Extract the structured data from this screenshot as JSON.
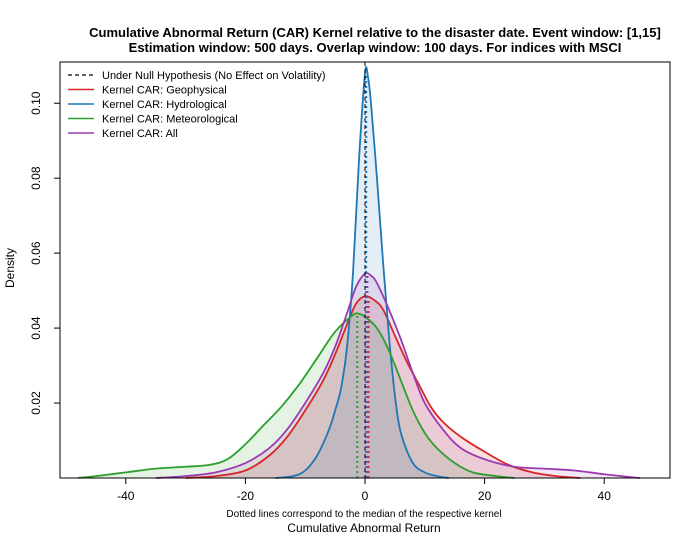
{
  "chart_data": {
    "type": "area",
    "title": "Cumulative Abnormal Return (CAR) Kernel relative to the disaster date. Event window: [1,15]",
    "subtitle": "Estimation window: 500 days. Overlap window: 100 days. For indices with MSCI",
    "xlabel": "Cumulative Abnormal Return",
    "ylabel": "Density",
    "note": "Dotted lines correspond to the median of the respective kernel",
    "xlim": [
      -51,
      51
    ],
    "ylim": [
      0,
      0.111
    ],
    "x_ticks": [
      -40,
      -20,
      0,
      20,
      40
    ],
    "x_tick_labels": [
      "-40",
      "-20",
      "0",
      "20",
      "40"
    ],
    "y_ticks": [
      0.02,
      0.04,
      0.06,
      0.08,
      0.1
    ],
    "y_tick_labels": [
      "0.02",
      "0.04",
      "0.06",
      "0.08",
      "0.10"
    ],
    "grid": false,
    "legend_position": "top-left",
    "null_hypothesis": {
      "label": "Under Null Hypothesis (No Effect on Volatility)",
      "x": 0,
      "color": "#000000"
    },
    "series": [
      {
        "name": "Kernel CAR: Geophysical",
        "color": "#d62728",
        "fill": "rgba(214,39,40,0.15)",
        "median": 0.6,
        "points": [
          [
            -30,
            0
          ],
          [
            -25,
            0.0005
          ],
          [
            -20,
            0.002
          ],
          [
            -16,
            0.006
          ],
          [
            -13,
            0.011
          ],
          [
            -10,
            0.018
          ],
          [
            -7,
            0.026
          ],
          [
            -5,
            0.033
          ],
          [
            -3,
            0.041
          ],
          [
            -1.5,
            0.0465
          ],
          [
            0,
            0.0485
          ],
          [
            1.5,
            0.0475
          ],
          [
            3,
            0.045
          ],
          [
            5,
            0.038
          ],
          [
            7,
            0.031
          ],
          [
            9,
            0.025
          ],
          [
            11,
            0.019
          ],
          [
            13,
            0.015
          ],
          [
            16,
            0.011
          ],
          [
            20,
            0.007
          ],
          [
            24,
            0.0035
          ],
          [
            28,
            0.0015
          ],
          [
            32,
            0.0005
          ],
          [
            36,
            0
          ]
        ]
      },
      {
        "name": "Kernel CAR: Hydrological",
        "color": "#1f77b4",
        "fill": "rgba(31,119,180,0.12)",
        "median": 0.2,
        "points": [
          [
            -15,
            0
          ],
          [
            -12,
            0.0005
          ],
          [
            -10,
            0.002
          ],
          [
            -8,
            0.006
          ],
          [
            -6,
            0.013
          ],
          [
            -5,
            0.018
          ],
          [
            -4,
            0.024
          ],
          [
            -3,
            0.035
          ],
          [
            -2,
            0.055
          ],
          [
            -1,
            0.085
          ],
          [
            0,
            0.108
          ],
          [
            0.5,
            0.107
          ],
          [
            1,
            0.1
          ],
          [
            2,
            0.08
          ],
          [
            3,
            0.058
          ],
          [
            4,
            0.038
          ],
          [
            5,
            0.022
          ],
          [
            6,
            0.012
          ],
          [
            8,
            0.004
          ],
          [
            10,
            0.0015
          ],
          [
            12,
            0.0005
          ],
          [
            14,
            0
          ]
        ]
      },
      {
        "name": "Kernel CAR: Meteorological",
        "color": "#2ca02c",
        "fill": "rgba(44,160,44,0.12)",
        "median": -1.3,
        "points": [
          [
            -48,
            0
          ],
          [
            -45,
            0.0005
          ],
          [
            -40,
            0.0015
          ],
          [
            -35,
            0.0025
          ],
          [
            -30,
            0.003
          ],
          [
            -26,
            0.0035
          ],
          [
            -23,
            0.005
          ],
          [
            -20,
            0.009
          ],
          [
            -17,
            0.014
          ],
          [
            -14,
            0.019
          ],
          [
            -11,
            0.025
          ],
          [
            -8,
            0.032
          ],
          [
            -5,
            0.039
          ],
          [
            -2,
            0.0435
          ],
          [
            -1,
            0.0438
          ],
          [
            0,
            0.043
          ],
          [
            2,
            0.04
          ],
          [
            4,
            0.034
          ],
          [
            6,
            0.026
          ],
          [
            8,
            0.018
          ],
          [
            10,
            0.012
          ],
          [
            12,
            0.008
          ],
          [
            15,
            0.004
          ],
          [
            18,
            0.0015
          ],
          [
            22,
            0.0005
          ],
          [
            25,
            0
          ]
        ]
      },
      {
        "name": "Kernel CAR: All",
        "color": "#9b3bb0",
        "fill": "rgba(155,59,176,0.12)",
        "median": 0.4,
        "points": [
          [
            -35,
            0
          ],
          [
            -30,
            0.0005
          ],
          [
            -25,
            0.0015
          ],
          [
            -20,
            0.004
          ],
          [
            -16,
            0.008
          ],
          [
            -13,
            0.013
          ],
          [
            -10,
            0.02
          ],
          [
            -7,
            0.028
          ],
          [
            -5,
            0.035
          ],
          [
            -3,
            0.044
          ],
          [
            -1.5,
            0.051
          ],
          [
            0,
            0.0545
          ],
          [
            1,
            0.054
          ],
          [
            2,
            0.052
          ],
          [
            4,
            0.045
          ],
          [
            6,
            0.037
          ],
          [
            8,
            0.028
          ],
          [
            10,
            0.02
          ],
          [
            13,
            0.013
          ],
          [
            16,
            0.008
          ],
          [
            20,
            0.005
          ],
          [
            25,
            0.003
          ],
          [
            30,
            0.0025
          ],
          [
            35,
            0.002
          ],
          [
            40,
            0.001
          ],
          [
            44,
            0.0003
          ],
          [
            46,
            0
          ]
        ]
      }
    ]
  }
}
